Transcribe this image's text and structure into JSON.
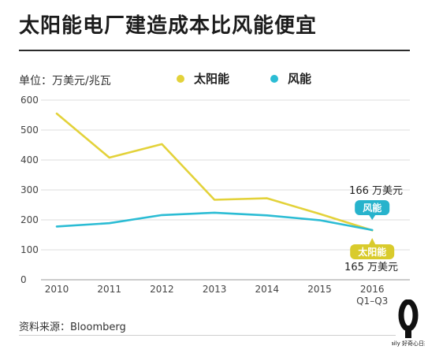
{
  "header": {
    "title": "太阳能电厂建造成本比风能便宜",
    "unit": "单位：万美元/兆瓦"
  },
  "legend": {
    "solar": "太阳能",
    "wind": "风能"
  },
  "colors": {
    "solar": "#e3d23a",
    "wind": "#2bbcd4",
    "solar_badge": "#d9cb2c",
    "wind_badge": "#27b3cc"
  },
  "source": "资料来源：Bloomberg",
  "logo": {
    "icon": "daily-q-logo",
    "text": "daily 好奇心日报"
  },
  "chart_data": {
    "type": "line",
    "x": [
      "2010",
      "2011",
      "2012",
      "2013",
      "2014",
      "2015",
      "2016"
    ],
    "x_tick_labels": [
      "2010",
      "2011",
      "2012",
      "2013",
      "2014",
      "2015",
      "2016"
    ],
    "x_tick_sublabel": "Q1–Q3",
    "ylim": [
      0,
      600
    ],
    "yticks": [
      0,
      100,
      200,
      300,
      400,
      500,
      600
    ],
    "grid": true,
    "legend_position": "top",
    "series": [
      {
        "name": "太阳能",
        "color": "#e3d23a",
        "values": [
          555,
          408,
          453,
          267,
          272,
          220,
          165
        ]
      },
      {
        "name": "风能",
        "color": "#2bbcd4",
        "values": [
          178,
          189,
          216,
          224,
          215,
          199,
          166
        ]
      }
    ],
    "annotations": {
      "wind_value": "166 万美元",
      "wind_badge": "风能",
      "solar_badge": "太阳能",
      "solar_value": "165 万美元"
    }
  }
}
